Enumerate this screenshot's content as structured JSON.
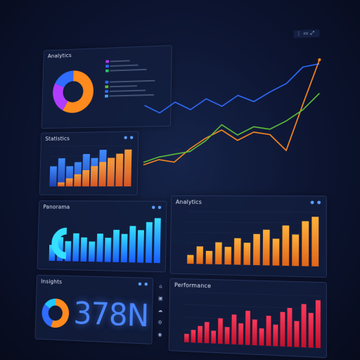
{
  "dashboard": {
    "title": "Analytics",
    "toolbar_icons": [
      "more-icon",
      "monitor-icon",
      "expand-icon"
    ]
  },
  "panels": {
    "donut_top": {
      "title": "Analytics"
    },
    "bars_left": {
      "title": "Statistics"
    },
    "line_main": {
      "title": ""
    },
    "cyan_bars": {
      "title": "Panorama"
    },
    "orange_bars": {
      "title": "Analytics"
    },
    "kpi": {
      "title": "Insights",
      "value": "378N"
    },
    "red_bars": {
      "title": "Performance"
    }
  },
  "colors": {
    "background": "#0a1024",
    "panel": "#121e3e",
    "orange": "#ff8a1e",
    "blue": "#2f6cff",
    "cyan": "#20c8ff",
    "red": "#ff2a48",
    "green": "#5fbf3a",
    "purple": "#b13cff"
  },
  "chart_data": [
    {
      "type": "pie",
      "id": "donut_top",
      "values": [
        58,
        24,
        18
      ],
      "colors": [
        "#ff8a1e",
        "#b13cff",
        "#2f6cff"
      ],
      "legend_colors": [
        "#b13cff",
        "#2f6cff",
        "#2ec46a",
        "#2f6cff",
        "#5fbf3a",
        "#2f6cff",
        "#4aa8ff"
      ]
    },
    {
      "type": "bar",
      "id": "bars_left",
      "series": [
        {
          "values": [
            5,
            7,
            5,
            6,
            8,
            7,
            9,
            6,
            5,
            4
          ],
          "color": "#2f6cff"
        },
        {
          "values": [
            0,
            1,
            2,
            3,
            4,
            5,
            6,
            7,
            8,
            9
          ],
          "color": "#ff8a1e"
        }
      ],
      "ylim": [
        0,
        10
      ]
    },
    {
      "type": "line",
      "id": "line_main",
      "series": [
        {
          "values": [
            64,
            58,
            66,
            60,
            68,
            62,
            70,
            65,
            72,
            78,
            90,
            92
          ],
          "color": "#2f6cff"
        },
        {
          "values": [
            18,
            22,
            20,
            30,
            38,
            44,
            36,
            42,
            40,
            28,
            62,
            95
          ],
          "color": "#ff8a1e"
        },
        {
          "values": [
            20,
            24,
            26,
            28,
            36,
            48,
            40,
            46,
            44,
            50,
            58,
            70
          ],
          "color": "#5fbf3a"
        }
      ],
      "ylim": [
        0,
        100
      ]
    },
    {
      "type": "bar",
      "id": "cyan_bars",
      "values": [
        4,
        6,
        5,
        7,
        6,
        5,
        7,
        6,
        8,
        7,
        9,
        8,
        10,
        11
      ],
      "ylim": [
        0,
        12
      ]
    },
    {
      "type": "bar",
      "id": "orange_bars",
      "values": [
        2,
        4,
        3,
        5,
        4,
        6,
        5,
        7,
        8,
        6,
        9,
        7,
        10,
        11
      ],
      "ylim": [
        0,
        12
      ]
    },
    {
      "type": "pie",
      "id": "kpi_donut",
      "values": [
        55,
        30,
        15
      ],
      "colors": [
        "#ff8a1e",
        "#2f6cff",
        "#20c8ff"
      ]
    },
    {
      "type": "bar",
      "id": "red_bars",
      "values": [
        2,
        3,
        4,
        5,
        3,
        6,
        4,
        7,
        5,
        8,
        6,
        4,
        7,
        5,
        8,
        9,
        6,
        10,
        8,
        11
      ],
      "ylim": [
        0,
        12
      ]
    }
  ]
}
